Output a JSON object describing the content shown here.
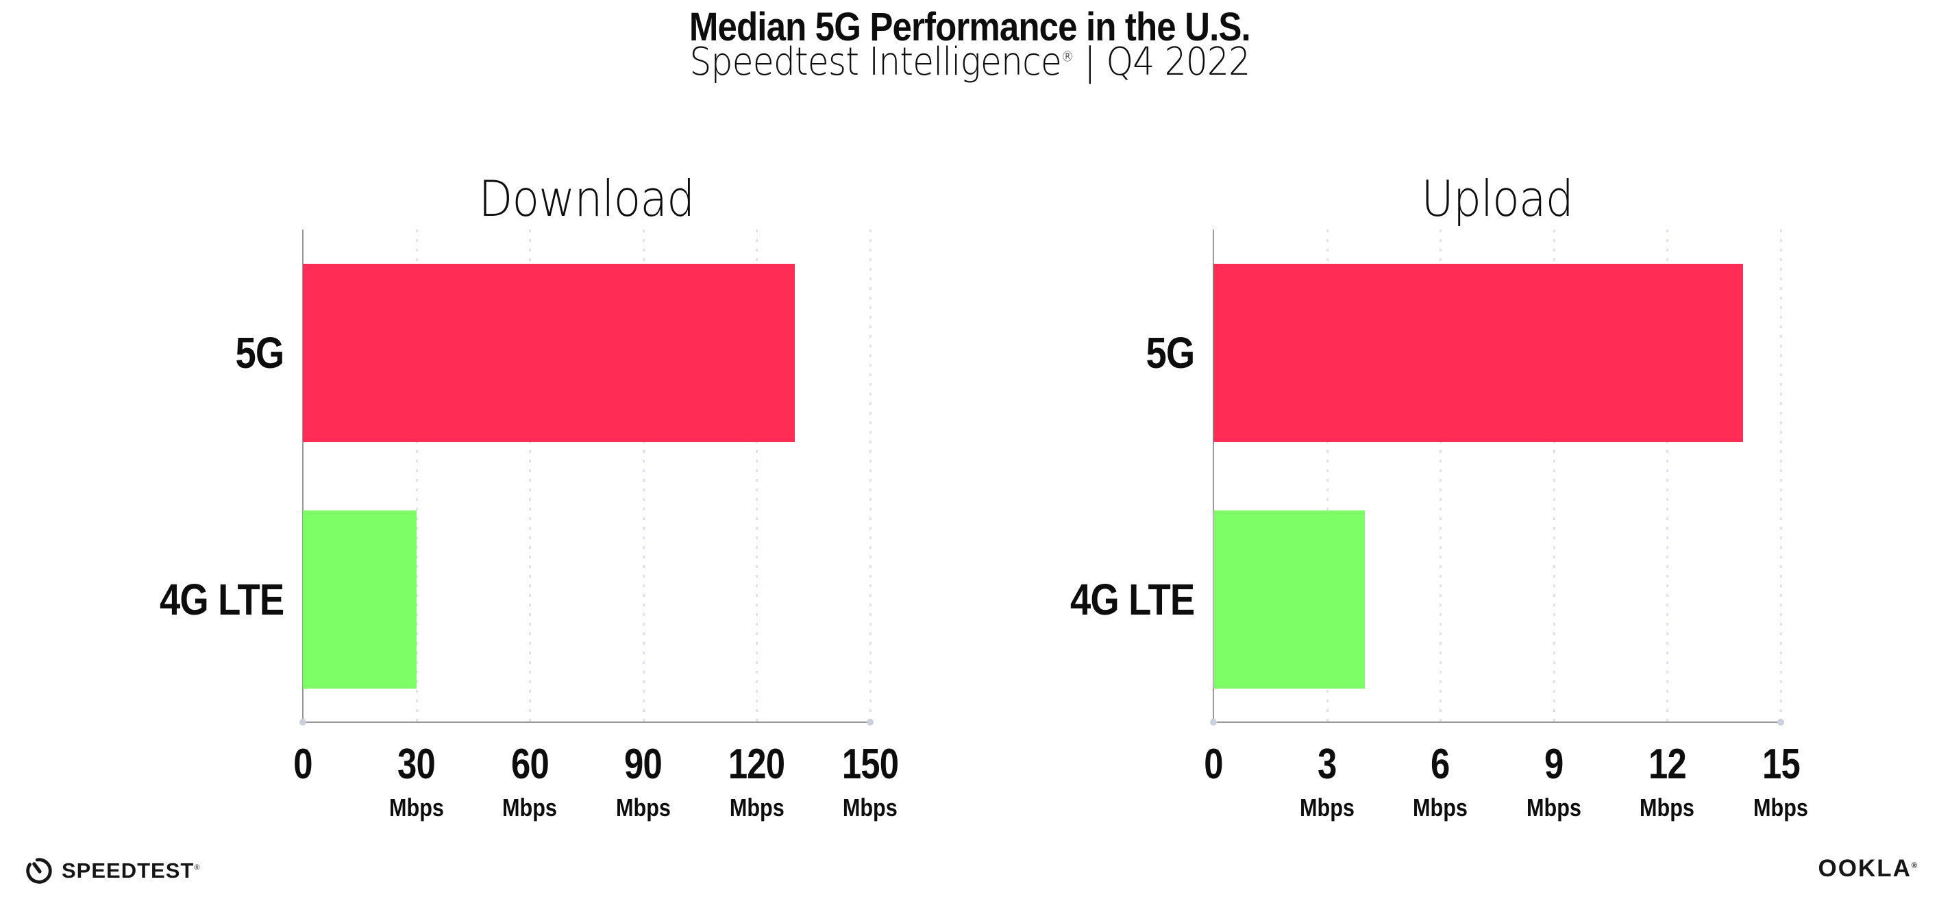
{
  "header": {
    "title": "Median 5G Performance in the U.S.",
    "subtitle": {
      "brand": "Speedtest Intelligence",
      "reg": "®",
      "divider": "|",
      "period": "Q4 2022"
    }
  },
  "chart_data": [
    {
      "type": "bar",
      "orientation": "horizontal",
      "title": "Download",
      "categories": [
        "5G",
        "4G LTE"
      ],
      "values": [
        130,
        30
      ],
      "unit": "Mbps",
      "xlim": [
        0,
        150
      ],
      "xticks": [
        0,
        30,
        60,
        90,
        120,
        150
      ],
      "tick_unit_label": "Mbps",
      "grid": "dotted-vertical-at-major-ticks",
      "legend": "none",
      "bar_colors": [
        "#ff2d55",
        "#7dfd66"
      ]
    },
    {
      "type": "bar",
      "orientation": "horizontal",
      "title": "Upload",
      "categories": [
        "5G",
        "4G LTE"
      ],
      "values": [
        14,
        4
      ],
      "unit": "Mbps",
      "xlim": [
        0,
        15
      ],
      "xticks": [
        0,
        3,
        6,
        9,
        12,
        15
      ],
      "tick_unit_label": "Mbps",
      "grid": "dotted-vertical-at-major-ticks",
      "legend": "none",
      "bar_colors": [
        "#ff2d55",
        "#7dfd66"
      ]
    }
  ],
  "colors": {
    "bar_5g": "#ff2d55",
    "bar_4g_lte": "#7dfd66",
    "axis": "#98989f",
    "gridline_dots": "#dfe2ed",
    "axis_end_dots": "#ccd0dd",
    "text": "#0d0d0d",
    "background": "#ffffff"
  },
  "footer": {
    "speedtest_logo_text": "SPEEDTEST",
    "speedtest_reg": "®",
    "ookla_logo_text": "OOKLA",
    "ookla_reg": "®"
  }
}
